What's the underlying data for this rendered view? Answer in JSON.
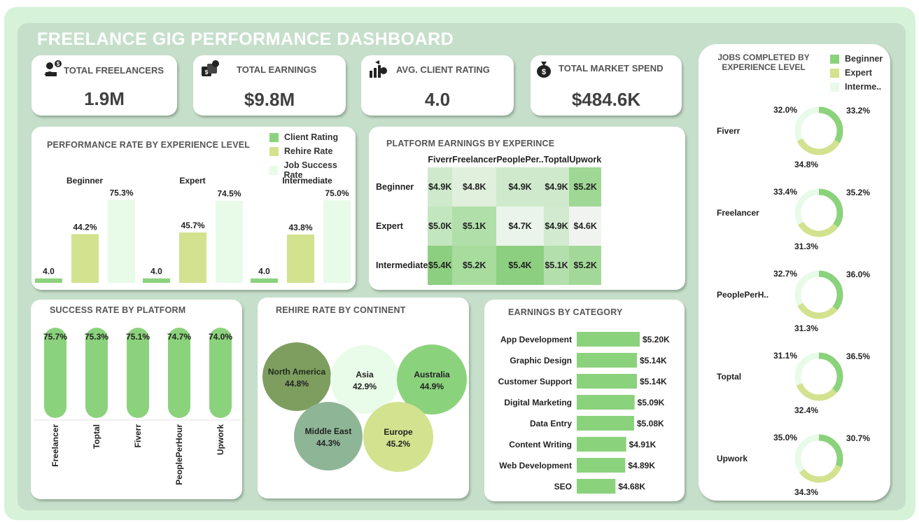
{
  "title": "FREELANCE GIG PERFORMANCE DASHBOARD",
  "colors": {
    "client_rating": "#8bd27c",
    "rehire_rate": "#d2e28e",
    "job_success": "#e8fbe9",
    "beginner": "#8bd27c",
    "expert": "#d2e28e",
    "intermediate": "#e8fbe9"
  },
  "kpis": [
    {
      "label": "TOTAL  FREELANCERS",
      "value": "1.9M",
      "icon": "freelancer-laptop-icon"
    },
    {
      "label": "TOTAL EARNINGS",
      "value": "$9.8M",
      "icon": "money-stack-icon"
    },
    {
      "label": "AVG. CLIENT RATING",
      "value": "4.0",
      "icon": "growth-chart-icon"
    },
    {
      "label": "TOTAL MARKET SPEND",
      "value": "$484.6K",
      "icon": "money-bag-icon"
    }
  ],
  "performance": {
    "title": "PERFORMANCE RATE BY EXPERIENCE LEVEL",
    "legend": [
      "Client Rating",
      "Rehire Rate",
      "Job Success Rate"
    ],
    "groups": [
      {
        "name": "Beginner",
        "labels": [
          "4.0",
          "44.2%",
          "75.3%"
        ]
      },
      {
        "name": "Expert",
        "labels": [
          "4.0",
          "45.7%",
          "74.5%"
        ]
      },
      {
        "name": "Intermediate",
        "labels": [
          "4.0",
          "43.8%",
          "75.0%"
        ]
      }
    ]
  },
  "platform_earnings": {
    "title": "PLATFORM EARNINGS BY EXPERINCE",
    "columns": [
      "Fiverr",
      "Freelancer",
      "PeoplePer..",
      "Toptal",
      "Upwork"
    ],
    "rows": [
      {
        "label": "Beginner",
        "cells": [
          "$4.9K",
          "$4.8K",
          "$4.9K",
          "$4.9K",
          "$5.2K"
        ],
        "shades": [
          "#cfe9cc",
          "#e0f0dd",
          "#cfe9cc",
          "#cfe9cc",
          "#9fd894"
        ]
      },
      {
        "label": "Expert",
        "cells": [
          "$5.0K",
          "$5.1K",
          "$4.7K",
          "$4.9K",
          "$4.6K"
        ],
        "shades": [
          "#c2e6bd",
          "#b0dfa9",
          "#ebf4ea",
          "#d2eacf",
          "#f1f3f1"
        ]
      },
      {
        "label": "Intermediate",
        "cells": [
          "$5.4K",
          "$5.2K",
          "$5.4K",
          "$5.1K",
          "$5.2K"
        ],
        "shades": [
          "#8ccf80",
          "#a7dc9d",
          "#8ccf80",
          "#b3dfac",
          "#a2d998"
        ]
      }
    ]
  },
  "success_rate": {
    "title": "SUCCESS RATE BY PLATFORM",
    "bars": [
      {
        "label": "Freelancer",
        "value": "75.7%"
      },
      {
        "label": "Toptal",
        "value": "75.3%"
      },
      {
        "label": "Fiverr",
        "value": "75.1%"
      },
      {
        "label": "PeoplePerHour",
        "value": "74.7%"
      },
      {
        "label": "Upwork",
        "value": "74.0%"
      }
    ]
  },
  "rehire": {
    "title": "REHIRE RATE BY CONTINENT",
    "bubbles": [
      {
        "name": "North America",
        "value": "44.8%",
        "color": "#7e9e60"
      },
      {
        "name": "Asia",
        "value": "42.9%",
        "color": "#e9fbe9"
      },
      {
        "name": "Australia",
        "value": "44.9%",
        "color": "#8bd27c"
      },
      {
        "name": "Middle East",
        "value": "44.3%",
        "color": "#8fb597"
      },
      {
        "name": "Europe",
        "value": "45.2%",
        "color": "#d2e28e"
      }
    ]
  },
  "earnings_category": {
    "title": "EARNINGS BY CATEGORY",
    "items": [
      {
        "label": "App Development",
        "value": "$5.20K",
        "amount": 5.2
      },
      {
        "label": "Graphic Design",
        "value": "$5.14K",
        "amount": 5.14
      },
      {
        "label": "Customer Support",
        "value": "$5.14K",
        "amount": 5.14
      },
      {
        "label": "Digital Marketing",
        "value": "$5.09K",
        "amount": 5.09
      },
      {
        "label": "Data Entry",
        "value": "$5.08K",
        "amount": 5.08
      },
      {
        "label": "Content Writing",
        "value": "$4.91K",
        "amount": 4.91
      },
      {
        "label": "Web Development",
        "value": "$4.89K",
        "amount": 4.89
      },
      {
        "label": "SEO",
        "value": "$4.68K",
        "amount": 4.68
      }
    ]
  },
  "jobs_completed": {
    "title": "JOBS COMPLETED  BY EXPERIENCE LEVEL",
    "legend": [
      "Beginner",
      "Expert",
      "Interme.."
    ],
    "platforms": [
      {
        "name": "Fiverr",
        "beginner": "33.2%",
        "expert": "34.8%",
        "intermediate": "32.0%"
      },
      {
        "name": "Freelancer",
        "beginner": "35.2%",
        "expert": "31.3%",
        "intermediate": "33.4%"
      },
      {
        "name": "PeoplePerH..",
        "beginner": "36.0%",
        "expert": "31.3%",
        "intermediate": "32.7%"
      },
      {
        "name": "Toptal",
        "beginner": "36.5%",
        "expert": "32.4%",
        "intermediate": "31.1%"
      },
      {
        "name": "Upwork",
        "beginner": "30.7%",
        "expert": "34.3%",
        "intermediate": "35.0%"
      }
    ]
  },
  "chart_data": [
    {
      "type": "bar",
      "title": "PERFORMANCE RATE BY EXPERIENCE LEVEL",
      "categories": [
        "Beginner",
        "Expert",
        "Intermediate"
      ],
      "series": [
        {
          "name": "Client Rating",
          "values": [
            4.0,
            4.0,
            4.0
          ]
        },
        {
          "name": "Rehire Rate",
          "values": [
            44.2,
            45.7,
            43.8
          ]
        },
        {
          "name": "Job Success Rate",
          "values": [
            75.3,
            74.5,
            75.0
          ]
        }
      ],
      "ylim": [
        0,
        80
      ]
    },
    {
      "type": "heatmap",
      "title": "PLATFORM EARNINGS BY EXPERINCE",
      "x": [
        "Fiverr",
        "Freelancer",
        "PeoplePer..",
        "Toptal",
        "Upwork"
      ],
      "y": [
        "Beginner",
        "Expert",
        "Intermediate"
      ],
      "values": [
        [
          4.9,
          4.8,
          4.9,
          4.9,
          5.2
        ],
        [
          5.0,
          5.1,
          4.7,
          4.9,
          4.6
        ],
        [
          5.4,
          5.2,
          5.4,
          5.1,
          5.2
        ]
      ]
    },
    {
      "type": "bar",
      "title": "SUCCESS RATE BY PLATFORM",
      "categories": [
        "Freelancer",
        "Toptal",
        "Fiverr",
        "PeoplePerHour",
        "Upwork"
      ],
      "values": [
        75.7,
        75.3,
        75.1,
        74.7,
        74.0
      ]
    },
    {
      "type": "scatter",
      "title": "REHIRE RATE BY CONTINENT",
      "categories": [
        "North America",
        "Asia",
        "Australia",
        "Middle East",
        "Europe"
      ],
      "values": [
        44.8,
        42.9,
        44.9,
        44.3,
        45.2
      ]
    },
    {
      "type": "bar",
      "title": "EARNINGS BY CATEGORY",
      "categories": [
        "App Development",
        "Graphic Design",
        "Customer Support",
        "Digital Marketing",
        "Data Entry",
        "Content Writing",
        "Web Development",
        "SEO"
      ],
      "values": [
        5.2,
        5.14,
        5.14,
        5.09,
        5.08,
        4.91,
        4.89,
        4.68
      ]
    },
    {
      "type": "pie",
      "title": "JOBS COMPLETED  BY EXPERIENCE LEVEL",
      "categories": [
        "Fiverr",
        "Freelancer",
        "PeoplePerH..",
        "Toptal",
        "Upwork"
      ],
      "series": [
        {
          "name": "Beginner",
          "values": [
            33.2,
            35.2,
            36.0,
            36.5,
            30.7
          ]
        },
        {
          "name": "Expert",
          "values": [
            34.8,
            31.3,
            31.3,
            32.4,
            34.3
          ]
        },
        {
          "name": "Interme..",
          "values": [
            32.0,
            33.4,
            32.7,
            31.1,
            35.0
          ]
        }
      ]
    }
  ]
}
